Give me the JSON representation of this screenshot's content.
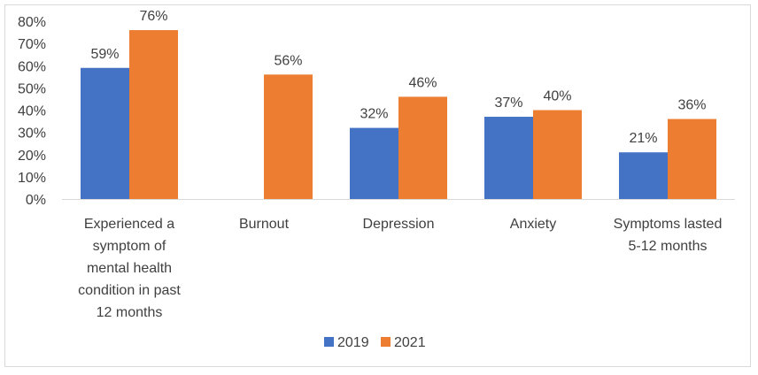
{
  "chart_data": {
    "type": "bar",
    "categories": [
      "Experienced a symptom of mental health condition in past 12 months",
      "Burnout",
      "Depression",
      "Anxiety",
      "Symptoms lasted 5-12 months"
    ],
    "category_lines": [
      [
        "Experienced a",
        "symptom of",
        "mental health",
        "condition in past",
        "12 months"
      ],
      [
        "Burnout"
      ],
      [
        "Depression"
      ],
      [
        "Anxiety"
      ],
      [
        "Symptoms lasted",
        "5-12 months"
      ]
    ],
    "series": [
      {
        "name": "2019",
        "color": "#4472c4",
        "values": [
          59,
          null,
          32,
          37,
          21
        ],
        "labels": [
          "59%",
          "",
          "32%",
          "37%",
          "21%"
        ]
      },
      {
        "name": "2021",
        "color": "#ed7d31",
        "values": [
          76,
          56,
          46,
          40,
          36
        ],
        "labels": [
          "76%",
          "56%",
          "46%",
          "40%",
          "36%"
        ]
      }
    ],
    "ylim": [
      0,
      80
    ],
    "y_ticks": [
      0,
      10,
      20,
      30,
      40,
      50,
      60,
      70,
      80
    ],
    "y_tick_labels": [
      "0%",
      "10%",
      "20%",
      "30%",
      "40%",
      "50%",
      "60%",
      "70%",
      "80%"
    ],
    "title": "",
    "xlabel": "",
    "ylabel": "",
    "grid": false,
    "legend_position": "bottom"
  }
}
